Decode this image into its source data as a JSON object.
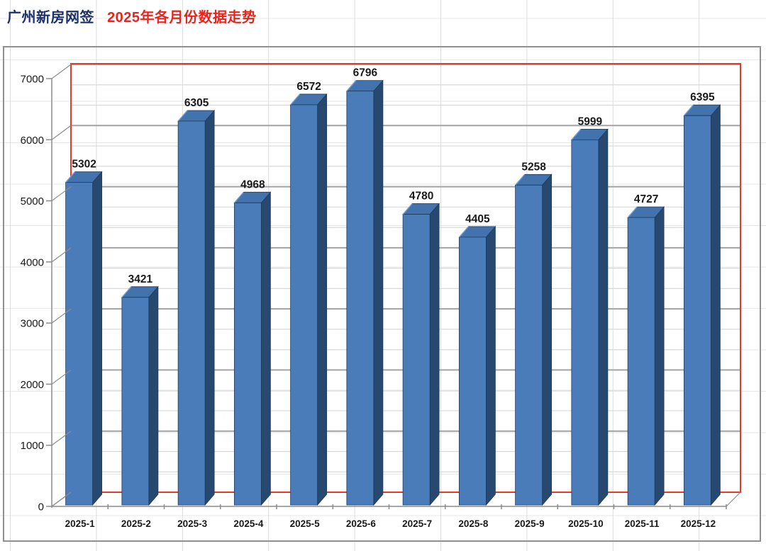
{
  "title": {
    "main": "广州新房网签",
    "sub": "2025年各月份数据走势"
  },
  "colors": {
    "title_main": "#1d3069",
    "title_sub": "#e8241c",
    "bar_face": "#4b7cba",
    "bar_side": "#27496f",
    "bar_top": "#4273ad",
    "bar_edge": "#1e3a5c",
    "wall_outline": "#e23b2e",
    "gridline_major": "#a3a3a3",
    "gridline_minor": "#d8d8d8",
    "axis_line": "#8c8c8c",
    "label_text": "#1a1a1a",
    "sheet_grid": "#dcdcdc",
    "chart_border": "#909090"
  },
  "chart_data": {
    "type": "bar",
    "style": "3d-column",
    "title": "广州新房网签 2025年各月份数据走势",
    "categories": [
      "2025-1",
      "2025-2",
      "2025-3",
      "2025-4",
      "2025-5",
      "2025-6",
      "2025-7",
      "2025-8",
      "2025-9",
      "2025-10",
      "2025-11",
      "2025-12"
    ],
    "values": [
      5302,
      3421,
      6305,
      4968,
      6572,
      6796,
      4780,
      4405,
      5258,
      5999,
      4727,
      6395
    ],
    "data_labels_shown": true,
    "xlabel": "",
    "ylabel": "",
    "ylim": [
      0,
      7000
    ],
    "y_major_ticks": [
      0,
      1000,
      2000,
      3000,
      4000,
      5000,
      6000,
      7000
    ],
    "y_minor_unit": 333.33,
    "grid": "horizontal major (dark) + minor (light)",
    "legend": "none"
  }
}
